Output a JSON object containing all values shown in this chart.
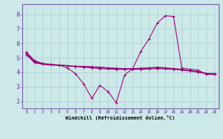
{
  "xlabel": "Windchill (Refroidissement éolien,°C)",
  "bg_color": "#cce8e8",
  "line_color": "#990077",
  "grid_color": "#aacccc",
  "xlim": [
    -0.5,
    23.5
  ],
  "ylim": [
    1.5,
    8.7
  ],
  "xticks": [
    0,
    1,
    2,
    3,
    4,
    5,
    6,
    7,
    8,
    9,
    10,
    11,
    12,
    13,
    14,
    15,
    16,
    17,
    18,
    19,
    20,
    21,
    22,
    23
  ],
  "yticks": [
    2,
    3,
    4,
    5,
    6,
    7,
    8
  ],
  "series": {
    "line1": [
      5.4,
      4.8,
      4.6,
      4.5,
      4.5,
      4.3,
      3.9,
      3.2,
      2.2,
      3.1,
      2.65,
      1.9,
      3.8,
      4.25,
      5.45,
      6.3,
      7.4,
      7.9,
      7.85,
      4.3,
      4.2,
      4.15,
      3.85,
      3.85
    ],
    "line2": [
      5.3,
      4.75,
      4.6,
      4.55,
      4.5,
      4.45,
      4.4,
      4.35,
      4.3,
      4.25,
      4.22,
      4.2,
      4.2,
      4.22,
      4.25,
      4.3,
      4.35,
      4.3,
      4.25,
      4.2,
      4.1,
      4.05,
      3.9,
      3.9
    ],
    "line3": [
      5.3,
      4.7,
      4.55,
      4.5,
      4.48,
      4.45,
      4.42,
      4.4,
      4.38,
      4.35,
      4.3,
      4.28,
      4.25,
      4.25,
      4.28,
      4.3,
      4.3,
      4.28,
      4.25,
      4.2,
      4.1,
      4.05,
      3.92,
      3.9
    ],
    "line4": [
      5.2,
      4.65,
      4.55,
      4.5,
      4.48,
      4.45,
      4.4,
      4.38,
      4.35,
      4.32,
      4.28,
      4.25,
      4.22,
      4.2,
      4.2,
      4.22,
      4.25,
      4.22,
      4.2,
      4.15,
      4.08,
      4.0,
      3.9,
      3.88
    ]
  }
}
